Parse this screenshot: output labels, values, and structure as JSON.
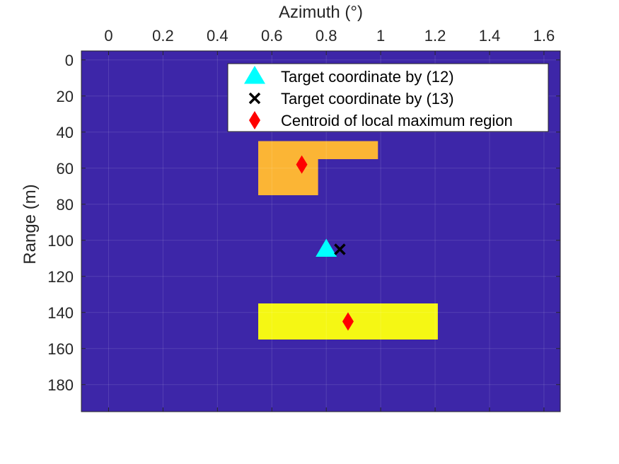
{
  "chart_data": {
    "type": "heatmap",
    "title": "",
    "xlabel": "Azimuth (°)",
    "ylabel": "Range (m)",
    "x_axis_location": "top",
    "y_axis_direction": "reversed",
    "xlim": [
      -0.1,
      1.66
    ],
    "ylim": [
      -5,
      195
    ],
    "xticks": [
      0,
      0.2,
      0.4,
      0.6,
      0.8,
      1,
      1.2,
      1.4,
      1.6
    ],
    "xtick_labels": [
      "0",
      "0.2",
      "0.4",
      "0.6",
      "0.8",
      "1",
      "1.2",
      "1.4",
      "1.6"
    ],
    "yticks": [
      0,
      20,
      40,
      60,
      80,
      100,
      120,
      140,
      160,
      180
    ],
    "ytick_labels": [
      "0",
      "20",
      "40",
      "60",
      "80",
      "100",
      "120",
      "140",
      "160",
      "180"
    ],
    "grid": true,
    "background_color": "#3d26a8",
    "regions": [
      {
        "x": [
          0.55,
          0.99
        ],
        "y": [
          45,
          55
        ],
        "color": "#fbb535"
      },
      {
        "x": [
          0.55,
          0.77
        ],
        "y": [
          55,
          75
        ],
        "color": "#fbb535"
      },
      {
        "x": [
          0.55,
          1.21
        ],
        "y": [
          135,
          155
        ],
        "color": "#f5f714"
      }
    ],
    "series": [
      {
        "name": "Target coordinate by (12)",
        "marker": "triangle",
        "color": "#00ffff",
        "points": [
          {
            "x": 0.8,
            "y": 105
          }
        ]
      },
      {
        "name": "Target coordinate by (13)",
        "marker": "x",
        "color": "#000000",
        "points": [
          {
            "x": 0.85,
            "y": 105
          }
        ]
      },
      {
        "name": "Centroid of local maximum region",
        "marker": "diamond",
        "color": "#ff0000",
        "points": [
          {
            "x": 0.71,
            "y": 58
          },
          {
            "x": 0.88,
            "y": 145
          }
        ]
      }
    ],
    "legend_position": "top-right"
  }
}
